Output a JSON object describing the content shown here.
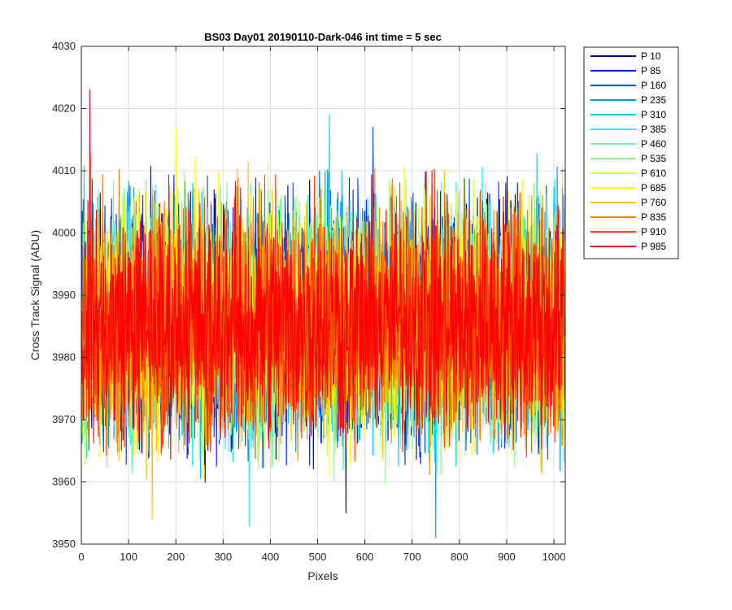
{
  "chart_data": {
    "type": "line",
    "title": "BS03 Day01 20190110-Dark-046 int time = 5 sec",
    "xlabel": "Pixels",
    "ylabel": "Cross Track Signal (ADU)",
    "xlim": [
      0,
      1024
    ],
    "ylim": [
      3950,
      4030
    ],
    "xticks": [
      0,
      100,
      200,
      300,
      400,
      500,
      600,
      700,
      800,
      900,
      1000
    ],
    "yticks": [
      3950,
      3960,
      3970,
      3980,
      3990,
      4000,
      4010,
      4020,
      4030
    ],
    "grid": true,
    "legend_position": "outside-top-right",
    "noise_summary": {
      "mean": 3985,
      "typical_min": 3962,
      "typical_max": 4010
    },
    "notable_points": [
      {
        "series": "P 985",
        "x": 18,
        "y": 4023
      },
      {
        "series": "P 310",
        "x": 525,
        "y": 4019
      },
      {
        "series": "P 160",
        "x": 617,
        "y": 4017
      },
      {
        "series": "P 685",
        "x": 200,
        "y": 4017
      },
      {
        "series": "P 760",
        "x": 150,
        "y": 3954
      },
      {
        "series": "P 235",
        "x": 750,
        "y": 3951
      },
      {
        "series": "P 385",
        "x": 355,
        "y": 3953
      },
      {
        "series": "P 10",
        "x": 560,
        "y": 3955
      },
      {
        "series": "P 10",
        "x": 1024,
        "y": 4010
      }
    ],
    "series": [
      {
        "name": "P 10",
        "color": "#00008f"
      },
      {
        "name": "P 85",
        "color": "#0020ff"
      },
      {
        "name": "P 160",
        "color": "#0050ff"
      },
      {
        "name": "P 235",
        "color": "#0090ff"
      },
      {
        "name": "P 310",
        "color": "#00c8ff"
      },
      {
        "name": "P 385",
        "color": "#20f0f0"
      },
      {
        "name": "P 460",
        "color": "#60ffb0"
      },
      {
        "name": "P 535",
        "color": "#90ff80"
      },
      {
        "name": "P 610",
        "color": "#c8ff40"
      },
      {
        "name": "P 685",
        "color": "#ffff00"
      },
      {
        "name": "P 760",
        "color": "#ffc000"
      },
      {
        "name": "P 835",
        "color": "#ff8000"
      },
      {
        "name": "P 910",
        "color": "#ff4000"
      },
      {
        "name": "P 985",
        "color": "#ff0000"
      }
    ]
  }
}
